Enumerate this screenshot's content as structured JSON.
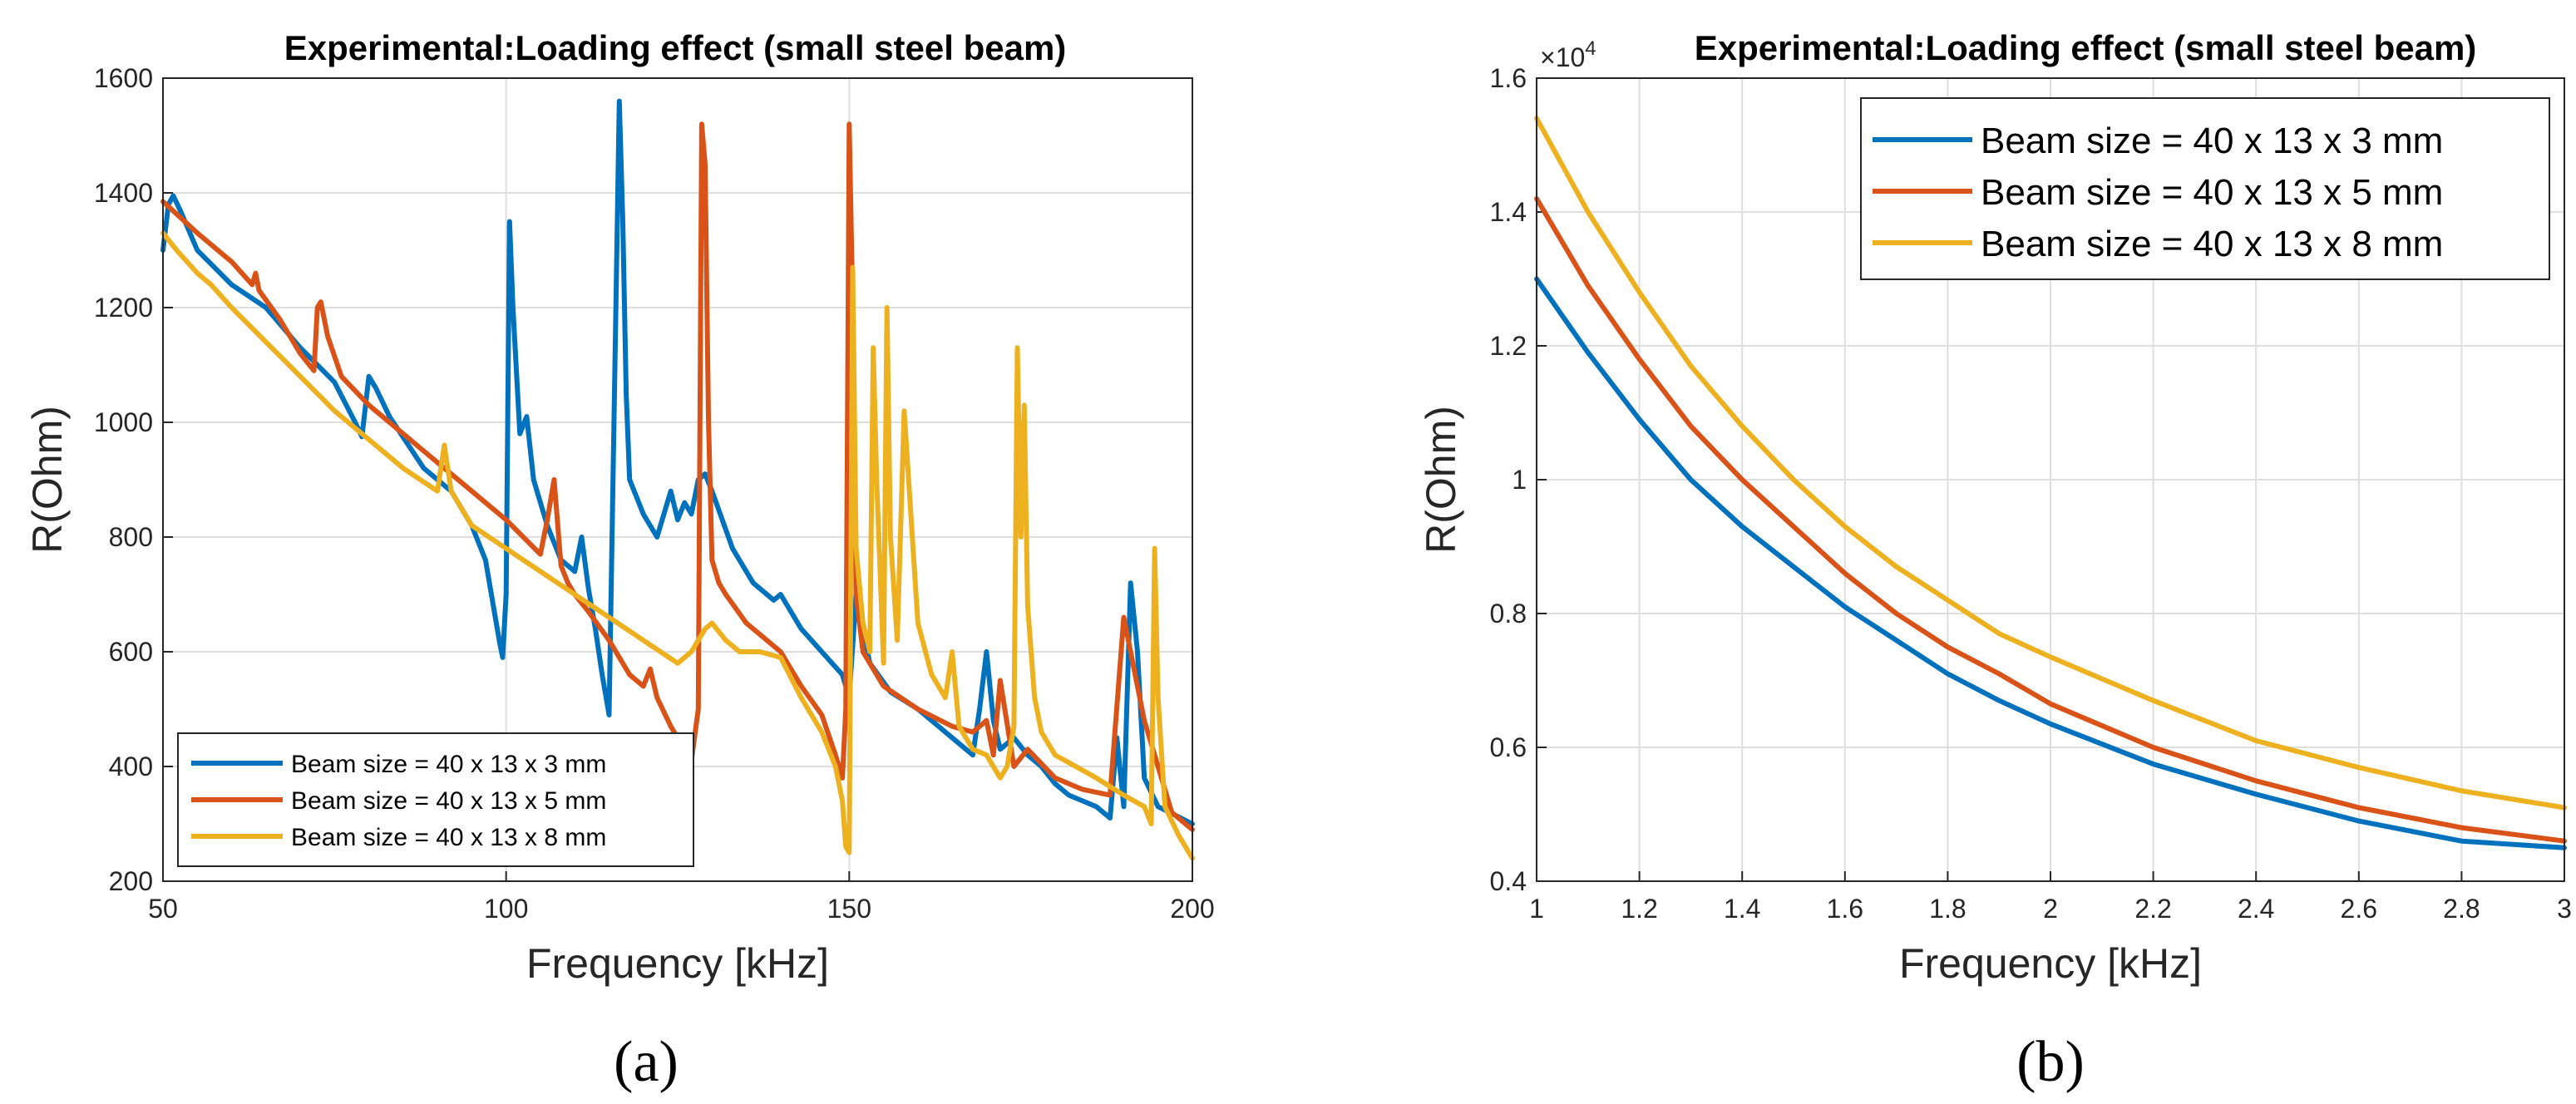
{
  "colors": {
    "series1": "#0072BD",
    "series2": "#D95319",
    "series3": "#EDB120",
    "axis": "#262626",
    "grid": "#dedede"
  },
  "chart_data": [
    {
      "id": "a",
      "type": "line",
      "caption": "(a)",
      "title": "Experimental:Loading effect (small steel beam)",
      "xlabel": "Frequency [kHz]",
      "ylabel": "R(Ohm)",
      "xlim": [
        50,
        200
      ],
      "ylim": [
        200,
        1600
      ],
      "xticks": [
        50,
        100,
        150,
        200
      ],
      "yticks": [
        200,
        400,
        600,
        800,
        1000,
        1200,
        1400,
        1600
      ],
      "grid": true,
      "legend_position": "bottom-left",
      "series": [
        {
          "name": "Beam size = 40 x 13 x 3 mm",
          "x": [
            50,
            50.8,
            51.5,
            52.5,
            55,
            60,
            65,
            70,
            75,
            78,
            79,
            80,
            81,
            83,
            88,
            92,
            95,
            97,
            99,
            99.5,
            100,
            100.5,
            101,
            102,
            103,
            104,
            106,
            108,
            110,
            111,
            112,
            113,
            114,
            115,
            116,
            116.5,
            117,
            117.5,
            118,
            119,
            120,
            122,
            124,
            125,
            126,
            127,
            128,
            129,
            130,
            133,
            136,
            139,
            140,
            143,
            146,
            149,
            150,
            151,
            153,
            156,
            160,
            164,
            168,
            169,
            170,
            171,
            172,
            174,
            176,
            178,
            180,
            182,
            184,
            186,
            188,
            189,
            190,
            191,
            192,
            193,
            195,
            200
          ],
          "y": [
            1300,
            1380,
            1395,
            1370,
            1300,
            1240,
            1200,
            1130,
            1070,
            1000,
            975,
            1080,
            1060,
            1010,
            920,
            880,
            820,
            760,
            620,
            590,
            700,
            1350,
            1200,
            980,
            1010,
            900,
            820,
            760,
            740,
            800,
            710,
            640,
            560,
            490,
            1200,
            1560,
            1350,
            1050,
            900,
            870,
            840,
            800,
            880,
            830,
            860,
            840,
            900,
            910,
            880,
            780,
            720,
            690,
            700,
            640,
            600,
            560,
            520,
            700,
            580,
            530,
            500,
            460,
            420,
            500,
            600,
            480,
            430,
            450,
            420,
            400,
            370,
            350,
            340,
            330,
            310,
            450,
            330,
            720,
            600,
            380,
            330,
            300
          ]
        },
        {
          "name": "Beam size = 40 x 13 x 5 mm",
          "x": [
            50,
            55,
            60,
            63,
            63.5,
            64,
            67,
            70,
            72,
            72.5,
            73,
            74,
            76,
            80,
            85,
            90,
            95,
            100,
            105,
            106,
            107,
            108,
            109,
            110,
            112,
            115,
            118,
            120,
            121,
            122,
            124,
            126,
            127,
            128,
            128.5,
            129,
            129.5,
            130,
            131,
            132,
            135,
            138,
            140,
            143,
            146,
            148,
            149,
            149.5,
            150,
            150.5,
            151,
            152,
            155,
            160,
            165,
            168,
            170,
            171,
            172,
            174,
            176,
            180,
            184,
            188,
            190,
            191,
            193,
            197,
            200
          ],
          "y": [
            1385,
            1330,
            1280,
            1240,
            1260,
            1230,
            1180,
            1120,
            1090,
            1200,
            1210,
            1150,
            1080,
            1030,
            980,
            930,
            880,
            830,
            770,
            830,
            900,
            750,
            720,
            700,
            670,
            620,
            560,
            540,
            570,
            520,
            470,
            430,
            410,
            500,
            1520,
            1450,
            1000,
            760,
            720,
            700,
            650,
            620,
            600,
            540,
            490,
            420,
            380,
            500,
            1520,
            1200,
            700,
            600,
            540,
            500,
            470,
            460,
            480,
            420,
            550,
            400,
            430,
            380,
            360,
            350,
            660,
            600,
            480,
            320,
            290
          ]
        },
        {
          "name": "Beam size = 40 x 13 x 8 mm",
          "x": [
            50,
            52,
            55,
            57,
            60,
            65,
            70,
            75,
            80,
            85,
            90,
            91,
            92,
            93,
            95,
            100,
            105,
            110,
            115,
            120,
            125,
            127,
            128,
            129,
            130,
            132,
            134,
            137,
            140,
            143,
            146,
            148,
            149,
            149.5,
            150,
            150.5,
            151,
            152,
            153,
            153.5,
            154,
            155,
            155.5,
            156,
            157,
            158,
            160,
            162,
            164,
            165,
            166,
            168,
            170,
            172,
            173,
            174,
            174.5,
            175,
            175.5,
            176,
            177,
            178,
            180,
            183,
            186,
            190,
            193,
            194,
            194.5,
            195,
            196,
            198,
            200
          ],
          "y": [
            1330,
            1300,
            1260,
            1240,
            1200,
            1140,
            1080,
            1020,
            970,
            920,
            880,
            960,
            880,
            860,
            820,
            780,
            740,
            700,
            660,
            620,
            580,
            600,
            620,
            640,
            650,
            620,
            600,
            600,
            590,
            520,
            460,
            400,
            340,
            260,
            250,
            1270,
            780,
            650,
            600,
            1130,
            900,
            580,
            1200,
            800,
            620,
            1020,
            650,
            560,
            520,
            600,
            470,
            430,
            420,
            380,
            400,
            470,
            1130,
            800,
            1030,
            680,
            520,
            460,
            420,
            400,
            380,
            350,
            330,
            300,
            780,
            520,
            330,
            280,
            240
          ]
        }
      ]
    },
    {
      "id": "b",
      "type": "line",
      "caption": "(b)",
      "title": "Experimental:Loading effect (small steel beam)",
      "xlabel": "Frequency [kHz]",
      "ylabel": "R(Ohm)",
      "exponent_label": "×10",
      "exponent_power": "4",
      "xlim": [
        1,
        3
      ],
      "ylim": [
        0.4,
        1.6
      ],
      "xticks": [
        "1",
        "1.2",
        "1.4",
        "1.6",
        "1.8",
        "2",
        "2.2",
        "2.4",
        "2.6",
        "2.8",
        "3"
      ],
      "yticks": [
        "0.4",
        "0.6",
        "0.8",
        "1",
        "1.2",
        "1.4",
        "1.6"
      ],
      "grid": true,
      "legend_position": "top-right",
      "series": [
        {
          "name": "Beam size = 40 x 13 x 3 mm",
          "x": [
            1,
            1.1,
            1.2,
            1.3,
            1.4,
            1.5,
            1.6,
            1.7,
            1.8,
            1.9,
            2,
            2.2,
            2.4,
            2.6,
            2.8,
            3
          ],
          "y": [
            1.3,
            1.19,
            1.09,
            1.0,
            0.93,
            0.87,
            0.81,
            0.76,
            0.71,
            0.67,
            0.635,
            0.575,
            0.53,
            0.49,
            0.46,
            0.45
          ]
        },
        {
          "name": "Beam size = 40 x 13 x 5 mm",
          "x": [
            1,
            1.1,
            1.2,
            1.3,
            1.4,
            1.5,
            1.6,
            1.7,
            1.8,
            1.9,
            2,
            2.2,
            2.4,
            2.6,
            2.8,
            3
          ],
          "y": [
            1.42,
            1.29,
            1.18,
            1.08,
            1.0,
            0.93,
            0.86,
            0.8,
            0.75,
            0.71,
            0.665,
            0.6,
            0.55,
            0.51,
            0.48,
            0.46
          ]
        },
        {
          "name": "Beam size = 40 x 13 x 8 mm",
          "x": [
            1,
            1.1,
            1.2,
            1.3,
            1.4,
            1.5,
            1.6,
            1.7,
            1.8,
            1.9,
            2,
            2.2,
            2.4,
            2.6,
            2.8,
            3
          ],
          "y": [
            1.54,
            1.4,
            1.28,
            1.17,
            1.08,
            1.0,
            0.93,
            0.87,
            0.82,
            0.77,
            0.735,
            0.67,
            0.61,
            0.57,
            0.535,
            0.51
          ]
        }
      ]
    }
  ]
}
